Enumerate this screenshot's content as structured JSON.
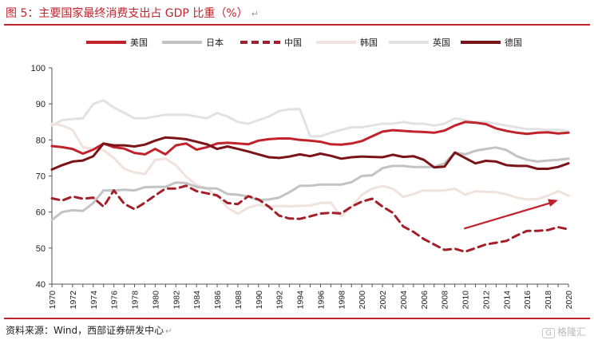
{
  "title": "图 5：主要国家最终消费支出占 GDP 比重（%）",
  "source": "资料来源：Wind，西部证券研发中心",
  "watermark": "格隆汇",
  "chart_data": {
    "type": "line",
    "xlabel": "",
    "ylabel": "",
    "ylim": [
      40,
      100
    ],
    "yticks": [
      40,
      50,
      60,
      70,
      80,
      90,
      100
    ],
    "grid": false,
    "legend_position": "top",
    "x": [
      1970,
      1971,
      1972,
      1973,
      1974,
      1975,
      1976,
      1977,
      1978,
      1979,
      1980,
      1981,
      1982,
      1983,
      1984,
      1985,
      1986,
      1987,
      1988,
      1989,
      1990,
      1991,
      1992,
      1993,
      1994,
      1995,
      1996,
      1997,
      1998,
      1999,
      2000,
      2001,
      2002,
      2003,
      2004,
      2005,
      2006,
      2007,
      2008,
      2009,
      2010,
      2011,
      2012,
      2013,
      2014,
      2015,
      2016,
      2017,
      2018,
      2019,
      2020
    ],
    "xticks": [
      1970,
      1972,
      1974,
      1976,
      1978,
      1980,
      1982,
      1984,
      1986,
      1988,
      1990,
      1992,
      1994,
      1996,
      1998,
      2000,
      2002,
      2004,
      2006,
      2008,
      2010,
      2012,
      2014,
      2016,
      2018,
      2020
    ],
    "series": [
      {
        "name": "美国",
        "color": "#c0232c",
        "dash": false,
        "values": [
          78.3,
          78.0,
          77.5,
          76.2,
          77.3,
          79.0,
          78.0,
          77.6,
          76.4,
          76.0,
          77.5,
          76.0,
          78.5,
          79.0,
          77.3,
          78.0,
          79.0,
          79.2,
          79.0,
          78.8,
          79.8,
          80.2,
          80.4,
          80.4,
          80.0,
          79.8,
          79.5,
          78.8,
          78.7,
          79.0,
          79.7,
          81.0,
          82.3,
          82.7,
          82.5,
          82.3,
          82.2,
          82.0,
          82.6,
          84.0,
          85.0,
          84.8,
          84.4,
          83.2,
          82.5,
          82.0,
          81.7,
          82.0,
          82.1,
          81.8,
          82.0
        ]
      },
      {
        "name": "日本",
        "color": "#c3c3c3",
        "dash": false,
        "values": [
          57.8,
          60.0,
          60.5,
          60.3,
          62.5,
          66.0,
          66.0,
          66.2,
          66.0,
          66.9,
          67.0,
          67.0,
          68.2,
          68.0,
          67.0,
          66.6,
          66.5,
          65.0,
          64.8,
          64.3,
          63.3,
          63.5,
          64.0,
          65.5,
          67.3,
          67.3,
          67.6,
          67.6,
          67.6,
          68.3,
          70.0,
          70.2,
          72.2,
          72.8,
          72.8,
          72.5,
          72.5,
          72.5,
          73.5,
          76.5,
          76.0,
          77.0,
          77.5,
          77.9,
          77.2,
          75.5,
          74.5,
          74.0,
          74.3,
          74.5,
          74.8
        ]
      },
      {
        "name": "中国",
        "color": "#a3202a",
        "dash": true,
        "values": [
          63.8,
          63.2,
          64.3,
          63.7,
          64.0,
          61.5,
          66.0,
          62.3,
          60.8,
          62.6,
          64.6,
          66.5,
          66.5,
          67.3,
          65.8,
          65.2,
          64.6,
          62.5,
          62.2,
          64.4,
          63.5,
          61.5,
          59.0,
          58.2,
          58.1,
          58.8,
          59.6,
          59.8,
          59.6,
          61.5,
          62.9,
          63.7,
          61.5,
          59.8,
          56.0,
          54.5,
          52.5,
          51.0,
          49.5,
          49.8,
          49.0,
          50.0,
          51.0,
          51.5,
          52.0,
          53.5,
          54.8,
          54.8,
          55.0,
          55.8,
          55.2
        ]
      },
      {
        "name": "韩国",
        "color": "#f0e2dc",
        "dash": false,
        "values": [
          84.5,
          84.0,
          82.8,
          78.0,
          77.5,
          77.2,
          75.0,
          72.0,
          71.0,
          70.5,
          74.5,
          74.8,
          73.0,
          69.8,
          67.5,
          66.5,
          64.5,
          61.2,
          59.5,
          61.2,
          62.0,
          61.5,
          61.7,
          61.6,
          61.7,
          61.8,
          62.5,
          62.6,
          58.8,
          61.5,
          64.8,
          66.5,
          67.2,
          66.5,
          64.2,
          65.0,
          66.0,
          65.9,
          66.0,
          66.5,
          64.8,
          65.8,
          65.6,
          65.5,
          64.9,
          64.0,
          63.5,
          63.6,
          64.5,
          65.8,
          64.5
        ]
      },
      {
        "name": "英国",
        "color": "#e2e2e2",
        "dash": false,
        "values": [
          84.0,
          85.5,
          85.8,
          86.0,
          90.0,
          91.0,
          89.0,
          87.5,
          86.0,
          86.0,
          86.5,
          87.0,
          87.0,
          87.0,
          86.5,
          86.0,
          87.5,
          86.5,
          85.0,
          84.5,
          85.5,
          86.5,
          88.0,
          88.5,
          88.5,
          81.0,
          81.0,
          82.0,
          82.8,
          83.5,
          83.5,
          84.0,
          84.5,
          84.5,
          85.0,
          84.5,
          84.5,
          84.0,
          84.5,
          86.0,
          85.5,
          85.0,
          85.0,
          84.5,
          84.0,
          83.5,
          83.0,
          83.0,
          82.8,
          82.8,
          82.5
        ]
      },
      {
        "name": "德国",
        "color": "#7a1418",
        "dash": false,
        "values": [
          71.8,
          73.0,
          74.0,
          74.3,
          75.5,
          79.0,
          78.5,
          78.5,
          78.2,
          78.7,
          79.8,
          80.7,
          80.5,
          80.2,
          79.5,
          78.8,
          77.5,
          78.2,
          77.5,
          76.8,
          76.0,
          75.2,
          75.0,
          75.4,
          76.0,
          75.5,
          76.2,
          75.6,
          74.8,
          75.2,
          75.4,
          75.3,
          75.2,
          75.9,
          75.3,
          75.5,
          74.5,
          72.4,
          72.6,
          76.5,
          75.0,
          73.5,
          74.2,
          74.0,
          73.0,
          72.8,
          72.8,
          72.0,
          72.0,
          72.5,
          73.5
        ]
      }
    ],
    "annotation": {
      "type": "arrow",
      "color": "#c0232c",
      "from": [
        2009.9,
        55.4
      ],
      "to": [
        2019,
        63.3
      ]
    }
  }
}
